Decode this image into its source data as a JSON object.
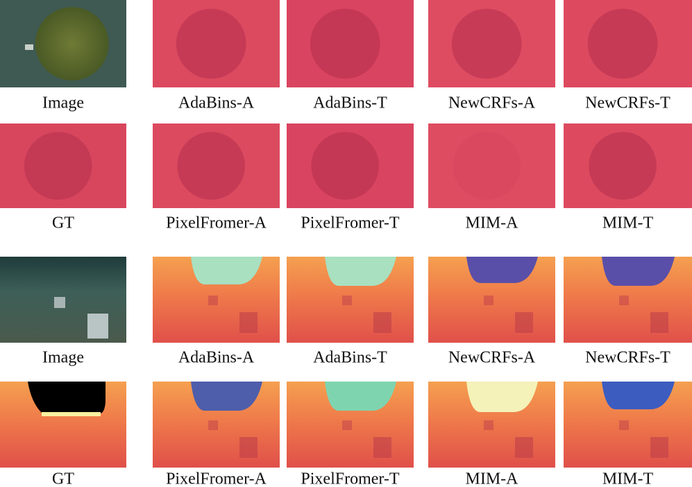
{
  "rows": [
    [
      "Image",
      "AdaBins-A",
      "AdaBins-T",
      "NewCRFs-A",
      "NewCRFs-T"
    ],
    [
      "GT",
      "PixelFromer-A",
      "PixelFromer-T",
      "MIM-A",
      "MIM-T"
    ],
    [
      "Image",
      "AdaBins-A",
      "AdaBins-T",
      "NewCRFs-A",
      "NewCRFs-T"
    ],
    [
      "GT",
      "PixelFromer-A",
      "PixelFromer-T",
      "MIM-A",
      "MIM-T"
    ]
  ]
}
